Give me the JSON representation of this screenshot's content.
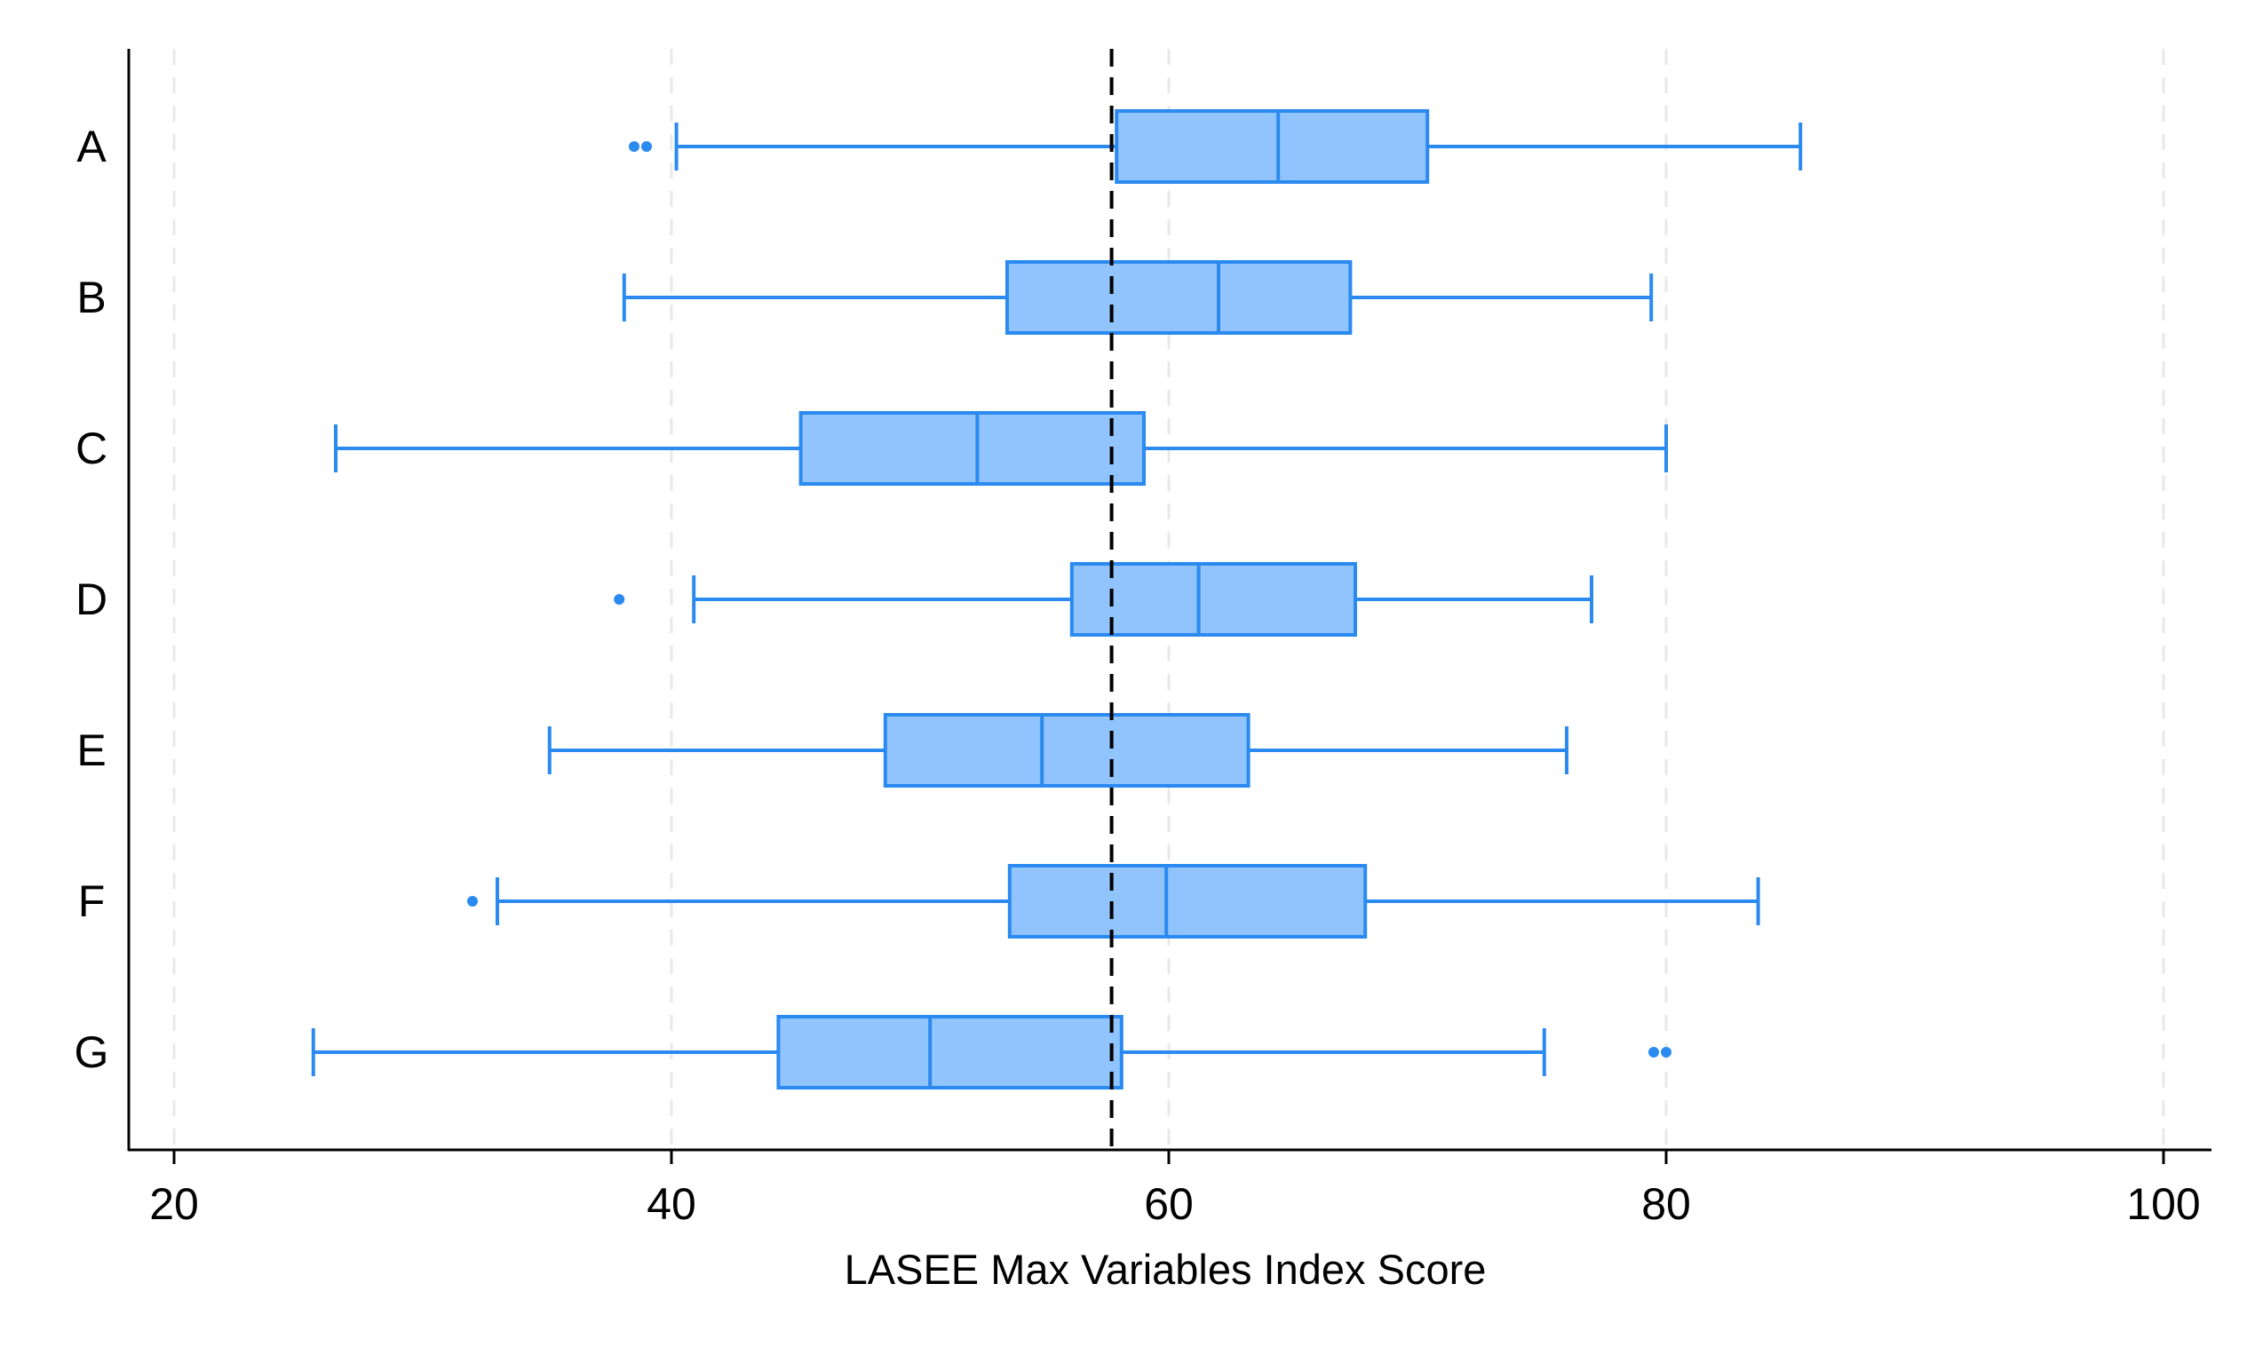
{
  "chart_data": {
    "type": "boxplot",
    "orientation": "horizontal",
    "title": "",
    "xlabel": "LASEE Max Variables Index Score",
    "ylabel": "",
    "xlim": [
      20,
      100
    ],
    "xticks": [
      20,
      40,
      60,
      80,
      100
    ],
    "grid": "vertical dashed at x ticks",
    "reference_line": {
      "x": 57.7,
      "style": "dashed",
      "color": "#000000"
    },
    "colors": {
      "box_fill": "#91c3fc",
      "box_stroke": "#2b8af0",
      "outlier": "#2b8af0",
      "grid": "#e8e8e8",
      "axis": "#000000"
    },
    "categories": [
      "A",
      "B",
      "C",
      "D",
      "E",
      "F",
      "G"
    ],
    "series": [
      {
        "category": "A",
        "whisker_low": 40.2,
        "q1": 57.9,
        "median": 64.4,
        "q3": 70.4,
        "whisker_high": 85.4,
        "outliers": [
          38.5,
          39.0
        ]
      },
      {
        "category": "B",
        "whisker_low": 38.1,
        "q1": 53.5,
        "median": 62.0,
        "q3": 67.3,
        "whisker_high": 79.4,
        "outliers": []
      },
      {
        "category": "C",
        "whisker_low": 26.5,
        "q1": 45.2,
        "median": 52.3,
        "q3": 59.0,
        "whisker_high": 80.0,
        "outliers": []
      },
      {
        "category": "D",
        "whisker_low": 40.9,
        "q1": 56.1,
        "median": 61.2,
        "q3": 67.5,
        "whisker_high": 77.0,
        "outliers": [
          37.9
        ]
      },
      {
        "category": "E",
        "whisker_low": 35.1,
        "q1": 48.6,
        "median": 54.9,
        "q3": 63.2,
        "whisker_high": 76.0,
        "outliers": []
      },
      {
        "category": "F",
        "whisker_low": 33.0,
        "q1": 53.6,
        "median": 59.9,
        "q3": 67.9,
        "whisker_high": 83.7,
        "outliers": [
          32.0
        ]
      },
      {
        "category": "G",
        "whisker_low": 25.6,
        "q1": 44.3,
        "median": 50.4,
        "q3": 58.1,
        "whisker_high": 75.1,
        "outliers": [
          79.5,
          80.0
        ]
      }
    ]
  }
}
